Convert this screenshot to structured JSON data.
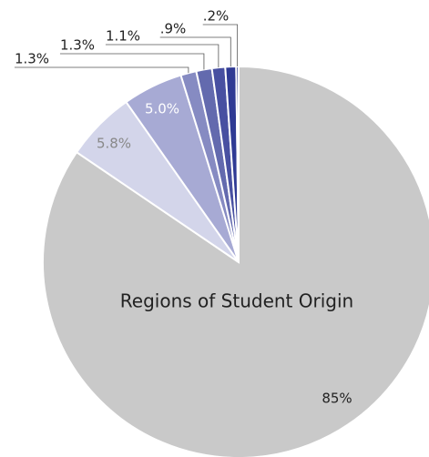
{
  "chart_data": {
    "type": "pie",
    "title": "Regions of Student Origin",
    "values": [
      85,
      5.8,
      5.0,
      1.3,
      1.3,
      1.1,
      0.9,
      0.2
    ],
    "value_labels": [
      "85%",
      "5.8%",
      "5.0%",
      "1.3%",
      "1.3%",
      "1.1%",
      ".9%",
      ".2%"
    ],
    "colors": [
      "#c9c9c9",
      "#d3d5ea",
      "#a7aad4",
      "#868bc2",
      "#636aae",
      "#4850a1",
      "#2f3a94",
      "#1c2680"
    ]
  }
}
